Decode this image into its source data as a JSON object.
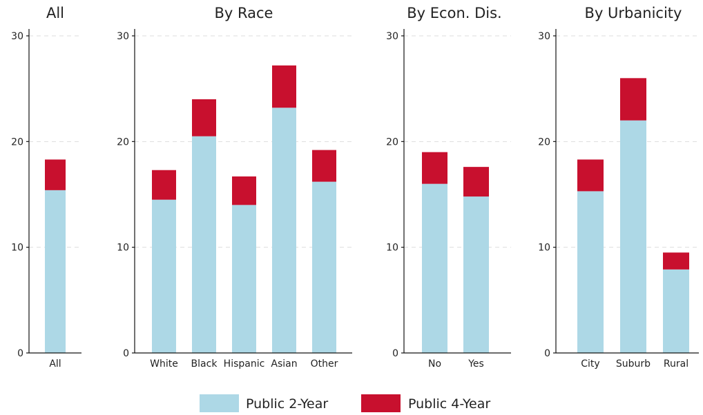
{
  "colors": {
    "public_2_year": "#add8e6",
    "public_4_year": "#c8102e",
    "gridline": "#dddddd",
    "axis": "#111111"
  },
  "legend": {
    "items": [
      {
        "label": "Public 2-Year",
        "color": "#add8e6"
      },
      {
        "label": "Public 4-Year",
        "color": "#c8102e"
      }
    ],
    "placement": "bottom-center"
  },
  "chart_data": [
    {
      "type": "bar",
      "stacked": true,
      "title": "All",
      "categories": [
        "All"
      ],
      "series": [
        {
          "name": "Public 2-Year",
          "values": [
            15.4
          ]
        },
        {
          "name": "Public 4-Year",
          "values": [
            2.9
          ]
        }
      ],
      "ylim": [
        0,
        30
      ],
      "yticks": [
        0,
        10,
        20,
        30
      ],
      "grid": "horizontal-dashed"
    },
    {
      "type": "bar",
      "stacked": true,
      "title": "By Race",
      "categories": [
        "White",
        "Black",
        "Hispanic",
        "Asian",
        "Other"
      ],
      "series": [
        {
          "name": "Public 2-Year",
          "values": [
            14.5,
            20.5,
            14.0,
            23.2,
            16.2
          ]
        },
        {
          "name": "Public 4-Year",
          "values": [
            2.8,
            3.5,
            2.7,
            4.0,
            3.0
          ]
        }
      ],
      "ylim": [
        0,
        30
      ],
      "yticks": [
        0,
        10,
        20,
        30
      ],
      "grid": "horizontal-dashed"
    },
    {
      "type": "bar",
      "stacked": true,
      "title": "By Econ. Dis.",
      "categories": [
        "No",
        "Yes"
      ],
      "series": [
        {
          "name": "Public 2-Year",
          "values": [
            16.0,
            14.8
          ]
        },
        {
          "name": "Public 4-Year",
          "values": [
            3.0,
            2.8
          ]
        }
      ],
      "ylim": [
        0,
        30
      ],
      "yticks": [
        0,
        10,
        20,
        30
      ],
      "grid": "horizontal-dashed"
    },
    {
      "type": "bar",
      "stacked": true,
      "title": "By Urbanicity",
      "categories": [
        "City",
        "Suburb",
        "Rural"
      ],
      "series": [
        {
          "name": "Public 2-Year",
          "values": [
            15.3,
            22.0,
            7.9
          ]
        },
        {
          "name": "Public 4-Year",
          "values": [
            3.0,
            4.0,
            1.6
          ]
        }
      ],
      "ylim": [
        0,
        30
      ],
      "yticks": [
        0,
        10,
        20,
        30
      ],
      "grid": "horizontal-dashed"
    }
  ]
}
